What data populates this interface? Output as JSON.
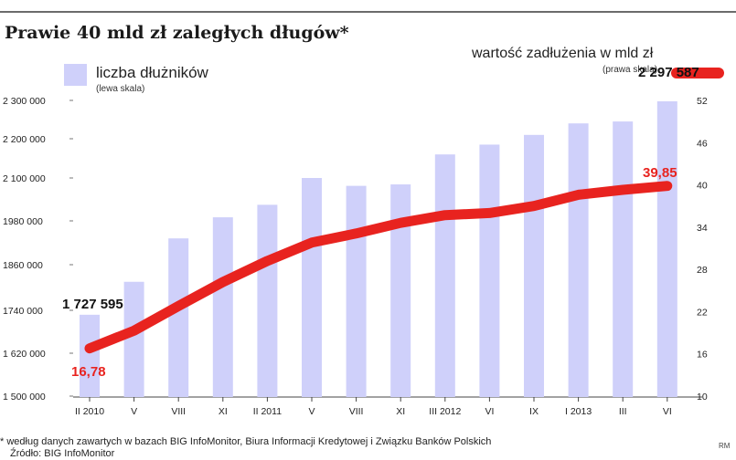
{
  "title": "Prawie 40 mld zł zaległych długów*",
  "legend": {
    "bars_label": "liczba dłużników",
    "bars_sub": "(lewa skala)",
    "line_label": "wartość zadłużenia w mld zł",
    "line_sub": "(prawa skala)"
  },
  "colors": {
    "bars": "#cfd0fa",
    "line": "#e8231f",
    "annotation_red": "#e8231f"
  },
  "footnote": "* według danych zawartych w bazach BIG InfoMonitor, Biura Informacji Kredytowej i Związku Banków Polskich",
  "source": "Źródło: BIG InfoMonitor",
  "credit": "RM",
  "chart_data": {
    "type": "bar",
    "categories": [
      "II 2010",
      "V",
      "VIII",
      "XI",
      "II 2011",
      "V",
      "VIII",
      "XI",
      "III 2012",
      "VI",
      "IX",
      "I 2013",
      "III",
      "VI"
    ],
    "series": [
      {
        "name": "liczba dłużników",
        "axis": "left",
        "type": "bar",
        "values": [
          1727595,
          1815000,
          1932000,
          1990000,
          2025000,
          2100000,
          2078000,
          2082000,
          2160000,
          2185000,
          2210000,
          2240000,
          2245000,
          2297587
        ]
      },
      {
        "name": "wartość zadłużenia w mld zł",
        "axis": "right",
        "type": "line",
        "values": [
          16.78,
          19.3,
          22.8,
          26.2,
          29.2,
          31.8,
          33.1,
          34.6,
          35.7,
          36.0,
          37.0,
          38.6,
          39.3,
          39.85
        ]
      }
    ],
    "y_left": {
      "ticks": [
        "1 500 000",
        "1 620 000",
        "1740 000",
        "1860 000",
        "1980 000",
        "2 100 000",
        "2 200 000",
        "2 300 000"
      ]
    },
    "y_right": {
      "ticks": [
        "10",
        "16",
        "22",
        "28",
        "34",
        "40",
        "46",
        "52"
      ]
    },
    "annotations": {
      "first_bar": "1 727 595",
      "last_bar": "2 297 587",
      "first_line": "16,78",
      "last_line": "39,85"
    }
  }
}
